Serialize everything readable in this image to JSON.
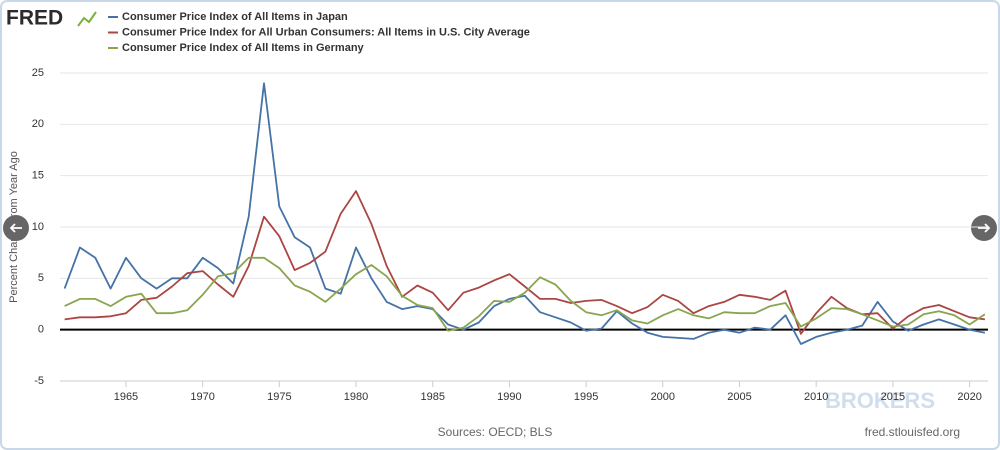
{
  "chart_data": {
    "type": "line",
    "logo": "FRED",
    "ylabel": "Percent Change from Year Ago",
    "source": "Sources: OECD; BLS",
    "credit": "fred.stlouisfed.org",
    "watermark": "BROKERS",
    "x": [
      1961,
      1962,
      1963,
      1964,
      1965,
      1966,
      1967,
      1968,
      1969,
      1970,
      1971,
      1972,
      1973,
      1974,
      1975,
      1976,
      1977,
      1978,
      1979,
      1980,
      1981,
      1982,
      1983,
      1984,
      1985,
      1986,
      1987,
      1988,
      1989,
      1990,
      1991,
      1992,
      1993,
      1994,
      1995,
      1996,
      1997,
      1998,
      1999,
      2000,
      2001,
      2002,
      2003,
      2004,
      2005,
      2006,
      2007,
      2008,
      2009,
      2010,
      2011,
      2012,
      2013,
      2014,
      2015,
      2016,
      2017,
      2018,
      2019,
      2020,
      2021
    ],
    "series": [
      {
        "name": "Consumer Price Index of All Items in Japan",
        "color": "#4572a7",
        "values": [
          4,
          8,
          7,
          4,
          7,
          5,
          4,
          5,
          5,
          7,
          6,
          4.5,
          11,
          24,
          12,
          9,
          8,
          4,
          3.5,
          8,
          5,
          2.7,
          2,
          2.3,
          2,
          0.5,
          0,
          0.7,
          2.3,
          3,
          3.3,
          1.7,
          1.2,
          0.7,
          -0.1,
          0.1,
          1.8,
          0.6,
          -0.3,
          -0.7,
          -0.8,
          -0.9,
          -0.3,
          0,
          -0.3,
          0.2,
          0,
          1.4,
          -1.4,
          -0.7,
          -0.3,
          0,
          0.4,
          2.7,
          0.8,
          -0.1,
          0.5,
          1,
          0.5,
          0,
          -0.3
        ]
      },
      {
        "name": "Consumer Price Index for All Urban Consumers: All Items in U.S. City Average",
        "color": "#aa4643",
        "values": [
          1,
          1.2,
          1.2,
          1.3,
          1.6,
          2.9,
          3.1,
          4.2,
          5.5,
          5.7,
          4.4,
          3.2,
          6.2,
          11,
          9.1,
          5.8,
          6.5,
          7.6,
          11.3,
          13.5,
          10.3,
          6.2,
          3.2,
          4.3,
          3.6,
          1.9,
          3.6,
          4.1,
          4.8,
          5.4,
          4.2,
          3,
          3,
          2.6,
          2.8,
          2.9,
          2.3,
          1.6,
          2.2,
          3.4,
          2.8,
          1.6,
          2.3,
          2.7,
          3.4,
          3.2,
          2.9,
          3.8,
          -0.4,
          1.6,
          3.2,
          2.1,
          1.5,
          1.6,
          0.1,
          1.3,
          2.1,
          2.4,
          1.8,
          1.2,
          1
        ]
      },
      {
        "name": "Consumer Price Index of All Items in Germany",
        "color": "#89a54e",
        "values": [
          2.3,
          3,
          3,
          2.3,
          3.2,
          3.5,
          1.6,
          1.6,
          1.9,
          3.4,
          5.2,
          5.5,
          7,
          7,
          6,
          4.3,
          3.7,
          2.7,
          4,
          5.4,
          6.3,
          5.2,
          3.3,
          2.4,
          2.1,
          -0.1,
          0.2,
          1.3,
          2.8,
          2.7,
          3.6,
          5.1,
          4.4,
          2.8,
          1.7,
          1.4,
          1.9,
          0.9,
          0.6,
          1.4,
          2,
          1.4,
          1.1,
          1.7,
          1.6,
          1.6,
          2.3,
          2.6,
          0.3,
          1.1,
          2.1,
          2,
          1.5,
          0.9,
          0.3,
          0.5,
          1.5,
          1.8,
          1.4,
          0.5,
          1.5
        ]
      }
    ],
    "xlim": [
      1960.7,
      2021.2
    ],
    "xticks": [
      1965,
      1970,
      1975,
      1980,
      1985,
      1990,
      1995,
      2000,
      2005,
      2010,
      2015,
      2020
    ],
    "ylim": [
      -5,
      25
    ],
    "yticks": [
      -5,
      0,
      5,
      10,
      15,
      20,
      25
    ],
    "grid": true
  }
}
